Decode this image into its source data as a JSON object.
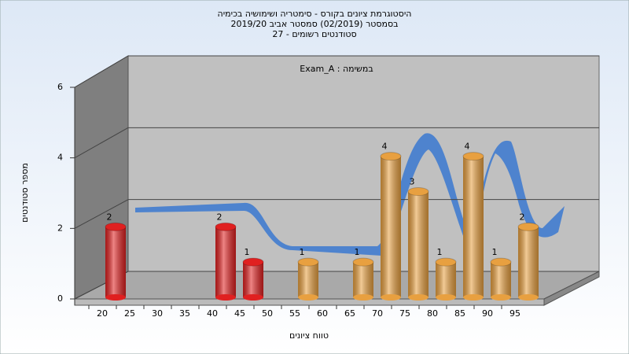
{
  "chart_data": {
    "type": "bar",
    "title": "היסטוגרמת ציונים בקורס - סימטריה ושימושיה בכימיה",
    "subtitle": "בסמסטר (02/2019) סמסטר אביב 2019/20",
    "subtitle2": "סטודנטים רשומים - 27",
    "annotation": "Exam_A : במשימה",
    "x_label": "טווח ציונים",
    "y_label": "מספר סטודנטים",
    "categories": [
      "20",
      "25",
      "30",
      "35",
      "40",
      "45",
      "50",
      "55",
      "60",
      "65",
      "70",
      "75",
      "80",
      "85",
      "90",
      "95"
    ],
    "values": [
      2,
      0,
      0,
      0,
      2,
      1,
      0,
      1,
      0,
      1,
      4,
      3,
      1,
      4,
      1,
      2
    ],
    "colors": [
      "#e02020",
      "#e02020",
      "#e02020",
      "#e02020",
      "#e02020",
      "#e02020",
      "#e02020",
      "#e8a040",
      "#e8a040",
      "#e8a040",
      "#e8a040",
      "#e8a040",
      "#e8a040",
      "#e8a040",
      "#e8a040",
      "#e8a040"
    ],
    "ylim": [
      0,
      6
    ],
    "yticks": [
      0,
      2,
      4,
      6
    ],
    "grid": true
  }
}
